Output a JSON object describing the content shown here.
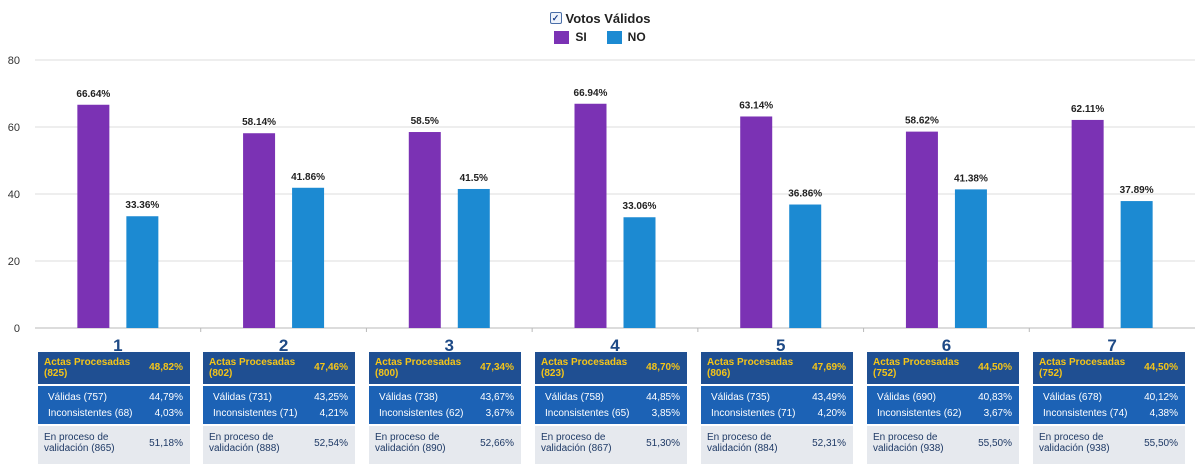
{
  "legend": {
    "title": "Votos Válidos",
    "items": [
      {
        "name": "SI",
        "color": "#7b32b4"
      },
      {
        "name": "NO",
        "color": "#1c8ad2"
      }
    ]
  },
  "chart_data": {
    "type": "bar",
    "title": "Votos Válidos",
    "xlabel": "",
    "ylabel": "",
    "categories": [
      "1",
      "2",
      "3",
      "4",
      "5",
      "6",
      "7"
    ],
    "ylim": [
      0,
      80
    ],
    "yticks": [
      0,
      20,
      40,
      60,
      80
    ],
    "grid": true,
    "legend_position": "top-center",
    "series": [
      {
        "name": "SI",
        "color": "#7b32b4",
        "values": [
          66.64,
          58.14,
          58.5,
          66.94,
          63.14,
          58.62,
          62.11
        ],
        "labels": [
          "66.64%",
          "58.14%",
          "58.5%",
          "66.94%",
          "63.14%",
          "58.62%",
          "62.11%"
        ]
      },
      {
        "name": "NO",
        "color": "#1c8ad2",
        "values": [
          33.36,
          41.86,
          41.5,
          33.06,
          36.86,
          41.38,
          37.89
        ],
        "labels": [
          "33.36%",
          "41.86%",
          "41.5%",
          "33.06%",
          "36.86%",
          "41.38%",
          "37.89%"
        ]
      }
    ]
  },
  "panels": [
    {
      "actas": "Actas Procesadas (825)",
      "actas_pct": "48,82%",
      "validas": "Válidas (757)",
      "validas_pct": "44,79%",
      "inconsistentes": "Inconsistentes (68)",
      "inconsistentes_pct": "4,03%",
      "proceso": "En proceso de validación (865)",
      "proceso_pct": "51,18%"
    },
    {
      "actas": "Actas Procesadas (802)",
      "actas_pct": "47,46%",
      "validas": "Válidas (731)",
      "validas_pct": "43,25%",
      "inconsistentes": "Inconsistentes (71)",
      "inconsistentes_pct": "4,21%",
      "proceso": "En proceso de validación (888)",
      "proceso_pct": "52,54%"
    },
    {
      "actas": "Actas Procesadas (800)",
      "actas_pct": "47,34%",
      "validas": "Válidas (738)",
      "validas_pct": "43,67%",
      "inconsistentes": "Inconsistentes (62)",
      "inconsistentes_pct": "3,67%",
      "proceso": "En proceso de validación (890)",
      "proceso_pct": "52,66%"
    },
    {
      "actas": "Actas Procesadas (823)",
      "actas_pct": "48,70%",
      "validas": "Válidas (758)",
      "validas_pct": "44,85%",
      "inconsistentes": "Inconsistentes (65)",
      "inconsistentes_pct": "3,85%",
      "proceso": "En proceso de validación (867)",
      "proceso_pct": "51,30%"
    },
    {
      "actas": "Actas Procesadas (806)",
      "actas_pct": "47,69%",
      "validas": "Válidas (735)",
      "validas_pct": "43,49%",
      "inconsistentes": "Inconsistentes (71)",
      "inconsistentes_pct": "4,20%",
      "proceso": "En proceso de validación (884)",
      "proceso_pct": "52,31%"
    },
    {
      "actas": "Actas Procesadas (752)",
      "actas_pct": "44,50%",
      "validas": "Válidas (690)",
      "validas_pct": "40,83%",
      "inconsistentes": "Inconsistentes (62)",
      "inconsistentes_pct": "3,67%",
      "proceso": "En proceso de validación (938)",
      "proceso_pct": "55,50%"
    },
    {
      "actas": "Actas Procesadas (752)",
      "actas_pct": "44,50%",
      "validas": "Válidas (678)",
      "validas_pct": "40,12%",
      "inconsistentes": "Inconsistentes (74)",
      "inconsistentes_pct": "4,38%",
      "proceso": "En proceso de validación (938)",
      "proceso_pct": "55,50%"
    }
  ]
}
